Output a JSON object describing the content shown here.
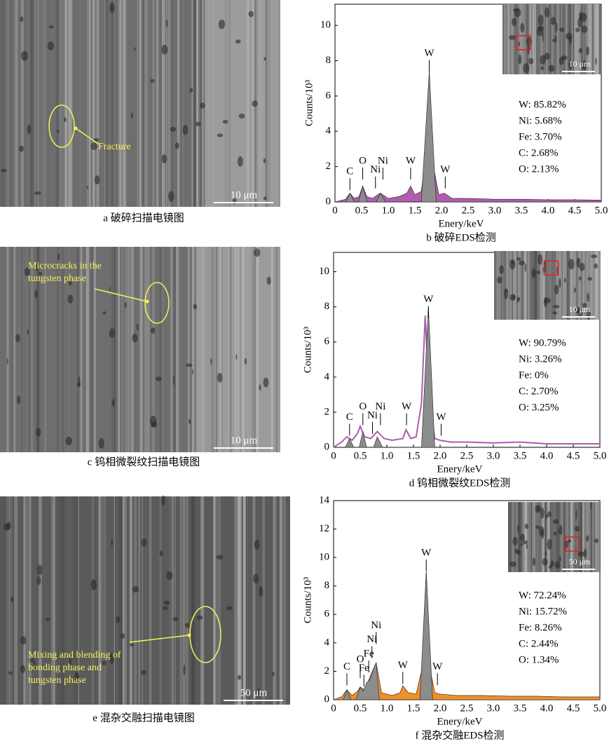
{
  "chart_data": [
    {
      "type": "area",
      "xlabel": "Enery/keV",
      "ylabel": "Counts/10³",
      "caption": "b  破碎EDS检测",
      "xlim": [
        0,
        5
      ],
      "ylim": [
        0,
        11.2
      ],
      "xticks": [
        0,
        0.5,
        {
          "value": 1,
          "label": "1.0"
        },
        1.5,
        {
          "value": 2,
          "label": "2.0"
        },
        2.5,
        {
          "value": 3,
          "label": "3.0"
        },
        3.5,
        {
          "value": 4,
          "label": "4.0"
        },
        4.5,
        {
          "value": 5,
          "label": "5.0"
        }
      ],
      "yticks": [
        0,
        2,
        4,
        6,
        8,
        10
      ],
      "series": [
        {
          "color": "#b05cb0",
          "style": "area",
          "x": [
            0,
            0.2,
            0.28,
            0.36,
            0.45,
            0.52,
            0.6,
            0.7,
            0.85,
            1.0,
            1.2,
            1.35,
            1.42,
            1.5,
            1.62,
            1.7,
            1.77,
            1.85,
            1.95,
            2.05,
            2.2,
            2.5,
            3,
            3.5,
            4,
            4.5,
            5
          ],
          "values": [
            0,
            0.15,
            0.5,
            0.2,
            0.3,
            0.9,
            0.3,
            0.2,
            0.5,
            0.2,
            0.3,
            0.5,
            0.9,
            0.4,
            0.6,
            2.5,
            7.4,
            2,
            0.4,
            0.5,
            0.2,
            0.2,
            0.15,
            0.15,
            0.12,
            0.12,
            0.1
          ]
        },
        {
          "color": "#8c8c8c",
          "style": "area",
          "x": [
            0.2,
            0.28,
            0.36,
            0.44,
            0.52,
            0.6,
            0.78,
            0.85,
            0.95,
            1.62,
            1.77,
            1.9
          ],
          "values": [
            0,
            0.5,
            0,
            0,
            0.9,
            0,
            0,
            0.5,
            0,
            0,
            7.4,
            0
          ]
        }
      ],
      "peak_labels": [
        {
          "text": "C",
          "x": 0.28,
          "y": 1.7
        },
        {
          "text": "O",
          "x": 0.52,
          "y": 2.3
        },
        {
          "text": "Ni",
          "x": 0.76,
          "y": 1.8
        },
        {
          "text": "Ni",
          "x": 0.9,
          "y": 2.3
        },
        {
          "text": "W",
          "x": 1.42,
          "y": 2.3
        },
        {
          "text": "W",
          "x": 1.77,
          "y": 8.4
        },
        {
          "text": "W",
          "x": 2.07,
          "y": 1.8
        }
      ],
      "composition": [
        "W: 85.82%",
        "Ni: 5.68%",
        "Fe: 3.70%",
        "C: 2.68%",
        "O: 2.13%"
      ],
      "inset_scale": "10 μm"
    },
    {
      "type": "area",
      "xlabel": "Enery/keV",
      "ylabel": "Counts/10³",
      "caption": "d  钨相微裂纹EDS检测",
      "xlim": [
        0,
        5
      ],
      "ylim": [
        0,
        11.1
      ],
      "xticks": [
        0,
        0.5,
        {
          "value": 1,
          "label": "1.0"
        },
        1.5,
        {
          "value": 2,
          "label": "2.0"
        },
        2.5,
        {
          "value": 3,
          "label": "3.0"
        },
        3.5,
        {
          "value": 4,
          "label": "4.0"
        },
        4.5,
        {
          "value": 5,
          "label": "5.0"
        }
      ],
      "yticks": [
        0,
        2,
        4,
        6,
        8,
        10
      ],
      "series": [
        {
          "color": "#b05cb0",
          "style": "line",
          "x": [
            0,
            0.15,
            0.25,
            0.35,
            0.45,
            0.5,
            0.58,
            0.7,
            0.82,
            0.95,
            1.1,
            1.3,
            1.36,
            1.45,
            1.55,
            1.65,
            1.72,
            1.8,
            1.9,
            2.0,
            2.2,
            2.5,
            3,
            3.5,
            4,
            4.5,
            5
          ],
          "values": [
            0,
            0.3,
            0.6,
            0.4,
            0.8,
            1.2,
            0.6,
            0.5,
            0.9,
            0.5,
            0.4,
            0.5,
            1,
            0.5,
            0.6,
            2.5,
            7.5,
            2.5,
            0.5,
            0.4,
            0.3,
            0.3,
            0.25,
            0.3,
            0.2,
            0.2,
            0.2
          ]
        },
        {
          "color": "#8c8c8c",
          "style": "area",
          "x": [
            0.22,
            0.3,
            0.38,
            0.48,
            0.55,
            0.62,
            0.75,
            0.82,
            0.92,
            1.65,
            1.78,
            1.9
          ],
          "values": [
            0,
            0.5,
            0,
            0,
            0.9,
            0,
            0,
            0.6,
            0,
            0,
            8,
            0
          ]
        }
      ],
      "peak_labels": [
        {
          "text": "C",
          "x": 0.3,
          "y": 1.7
        },
        {
          "text": "O",
          "x": 0.55,
          "y": 2.3
        },
        {
          "text": "Ni",
          "x": 0.73,
          "y": 1.8
        },
        {
          "text": "Ni",
          "x": 0.88,
          "y": 2.3
        },
        {
          "text": "W",
          "x": 1.37,
          "y": 2.3
        },
        {
          "text": "W",
          "x": 1.78,
          "y": 8.4
        },
        {
          "text": "W",
          "x": 2.02,
          "y": 1.7
        }
      ],
      "composition": [
        "W: 90.79%",
        "Ni: 3.26%",
        "Fe: 0%",
        "C: 2.70%",
        "O: 3.25%"
      ],
      "inset_scale": "10 μm"
    },
    {
      "type": "area",
      "xlabel": "Enery/keV",
      "ylabel": "Counts/10³",
      "caption": "f  混杂交融EDS检测",
      "xlim": [
        0,
        5
      ],
      "ylim": [
        0,
        14
      ],
      "xticks": [
        0,
        0.5,
        {
          "value": 1,
          "label": "1.0"
        },
        1.5,
        {
          "value": 2,
          "label": "2.0"
        },
        2.5,
        {
          "value": 3,
          "label": "3.0"
        },
        3.5,
        {
          "value": 4,
          "label": "4.0"
        },
        4.5,
        {
          "value": 5,
          "label": "5.0"
        }
      ],
      "yticks": [
        0,
        2,
        4,
        6,
        8,
        10,
        12,
        14
      ],
      "series": [
        {
          "color": "#f0902a",
          "style": "area",
          "x": [
            0,
            0.15,
            0.25,
            0.35,
            0.45,
            0.5,
            0.58,
            0.65,
            0.75,
            0.8,
            0.9,
            1.1,
            1.25,
            1.3,
            1.4,
            1.55,
            1.65,
            1.74,
            1.82,
            1.9,
            2.0,
            2.3,
            2.8,
            3.3,
            3.8,
            4.3,
            4.8,
            5
          ],
          "values": [
            0,
            0.2,
            0.7,
            0.3,
            0.6,
            0.9,
            0.7,
            1.3,
            2.2,
            2.6,
            0.5,
            0.3,
            0.5,
            1,
            0.5,
            0.4,
            2,
            9,
            2,
            0.5,
            0.4,
            0.3,
            0.3,
            0.25,
            0.25,
            0.2,
            0.2,
            0.2
          ]
        },
        {
          "color": "#8c8c8c",
          "style": "area",
          "x": [
            0.18,
            0.25,
            0.33,
            0.42,
            0.5,
            0.56,
            0.62,
            0.68,
            0.75,
            0.8,
            0.86,
            1.62,
            1.74,
            1.86
          ],
          "values": [
            0,
            0.7,
            0,
            0,
            0.9,
            0.6,
            1.2,
            1.4,
            2.2,
            2.6,
            0,
            0,
            9,
            0
          ]
        }
      ],
      "peak_labels": [
        {
          "text": "C",
          "x": 0.25,
          "y": 2.3
        },
        {
          "text": "O",
          "x": 0.5,
          "y": 2.8
        },
        {
          "text": "Fe",
          "x": 0.57,
          "y": 2.2
        },
        {
          "text": "Fe",
          "x": 0.66,
          "y": 3.2
        },
        {
          "text": "Ni",
          "x": 0.72,
          "y": 4.2
        },
        {
          "text": "Ni",
          "x": 0.8,
          "y": 5.2
        },
        {
          "text": "W",
          "x": 1.3,
          "y": 2.4
        },
        {
          "text": "W",
          "x": 1.74,
          "y": 10.3
        },
        {
          "text": "W",
          "x": 1.95,
          "y": 2.3
        }
      ],
      "composition": [
        "W: 72.24%",
        "Ni: 15.72%",
        "Fe: 8.26%",
        "C: 2.44%",
        "O: 1.34%"
      ],
      "inset_scale": "50 μm"
    }
  ],
  "images": [
    {
      "caption": "a  破碎扫描电镜图",
      "scale_bar": "10 μm",
      "annotation": [
        "Fracture"
      ]
    },
    {
      "caption": "c  钨相微裂纹扫描电镜图",
      "scale_bar": "10 μm",
      "annotation": [
        "Microcracks in the",
        "tungsten phase"
      ]
    },
    {
      "caption": "e  混杂交融扫描电镜图",
      "scale_bar": "50 μm",
      "annotation": [
        "Mixing and blending of",
        "bonding phase and",
        "tungsten phase"
      ]
    }
  ]
}
